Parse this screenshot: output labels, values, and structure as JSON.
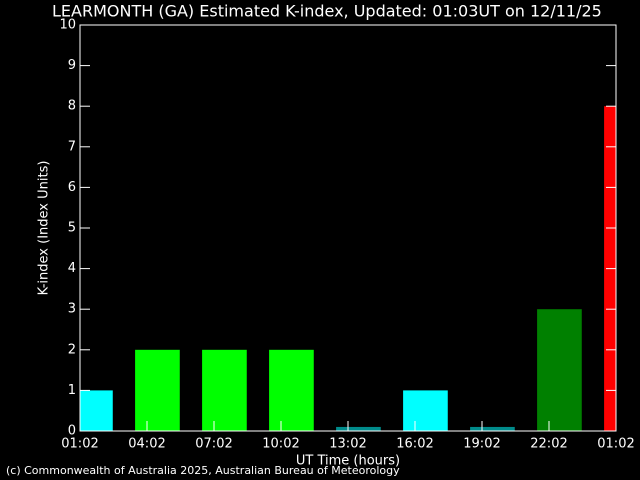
{
  "chart_data": {
    "type": "bar",
    "title": "LEARMONTH (GA) Estimated K-index, Updated: 01:03UT on 12/11/25",
    "x_label": "UT Time (hours)",
    "y_label": "K-index (Index Units)",
    "footnote": "(c) Commonwealth of Australia 2025, Australian Bureau of Meteorology",
    "x": [
      1.5,
      4.5,
      7.5,
      10.5,
      13.5,
      16.5,
      19.5,
      22.5,
      25.5
    ],
    "values": [
      1,
      2,
      2,
      2,
      0.1,
      1,
      0.1,
      3,
      8
    ],
    "colors": [
      "#00ffff",
      "#00ff00",
      "#00ff00",
      "#00ff00",
      "#008b8b",
      "#00ffff",
      "#008b8b",
      "#008000",
      "#ff0000"
    ],
    "bar_width": 2,
    "xlim": [
      1.033,
      25.033
    ],
    "xticks": [
      {
        "value": 1.033,
        "label": "01:02"
      },
      {
        "value": 4.033,
        "label": "04:02"
      },
      {
        "value": 7.033,
        "label": "07:02"
      },
      {
        "value": 10.033,
        "label": "10:02"
      },
      {
        "value": 13.033,
        "label": "13:02"
      },
      {
        "value": 16.033,
        "label": "16:02"
      },
      {
        "value": 19.033,
        "label": "19:02"
      },
      {
        "value": 22.033,
        "label": "22:02"
      },
      {
        "value": 25.033,
        "label": "01:02"
      }
    ],
    "ylim": [
      0,
      10
    ],
    "yticks": [
      0,
      1,
      2,
      3,
      4,
      5,
      6,
      7,
      8,
      9,
      10
    ]
  }
}
